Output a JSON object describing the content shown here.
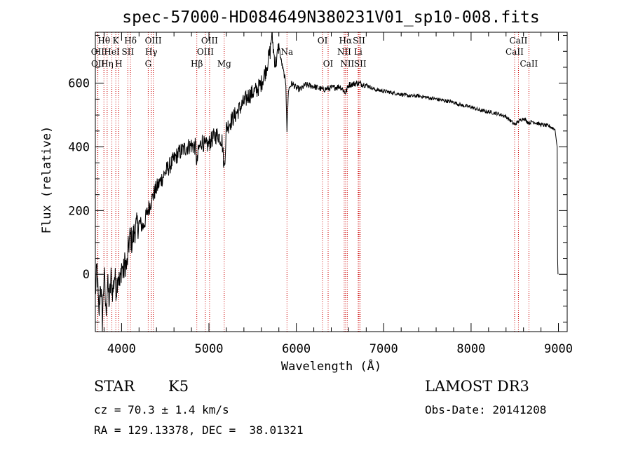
{
  "chart_data": {
    "type": "line",
    "title": "spec-57000-HD084649N380231V01_sp10-008.fits",
    "xlabel": "Wavelength (Å)",
    "ylabel": "Flux (relative)",
    "xlim": [
      3700,
      9100
    ],
    "ylim": [
      -180,
      760
    ],
    "xticks": [
      4000,
      5000,
      6000,
      7000,
      8000,
      9000
    ],
    "yticks": [
      0,
      200,
      400,
      600
    ],
    "series": [
      {
        "name": "spectrum",
        "x": [
          3700,
          3720,
          3740,
          3760,
          3780,
          3800,
          3820,
          3840,
          3860,
          3880,
          3900,
          3920,
          3940,
          3960,
          3980,
          4000,
          4020,
          4040,
          4060,
          4080,
          4100,
          4120,
          4150,
          4200,
          4250,
          4300,
          4340,
          4380,
          4420,
          4460,
          4500,
          4550,
          4600,
          4650,
          4700,
          4750,
          4800,
          4850,
          4861,
          4880,
          4920,
          4960,
          5000,
          5050,
          5100,
          5150,
          5175,
          5200,
          5250,
          5300,
          5350,
          5400,
          5450,
          5500,
          5550,
          5600,
          5650,
          5700,
          5720,
          5740,
          5760,
          5780,
          5800,
          5820,
          5850,
          5880,
          5893,
          5910,
          5950,
          6000,
          6050,
          6100,
          6200,
          6300,
          6400,
          6500,
          6563,
          6600,
          6700,
          6800,
          6900,
          7000,
          7100,
          7200,
          7300,
          7400,
          7500,
          7600,
          7700,
          7800,
          7900,
          8000,
          8100,
          8200,
          8300,
          8400,
          8498,
          8542,
          8600,
          8662,
          8700,
          8800,
          8900,
          8960,
          8985,
          8990,
          8995
        ],
        "values": [
          -60,
          20,
          -140,
          -20,
          -150,
          10,
          -120,
          -30,
          -90,
          -10,
          -60,
          0,
          -50,
          10,
          -40,
          30,
          0,
          40,
          20,
          90,
          120,
          100,
          140,
          160,
          150,
          200,
          230,
          260,
          280,
          300,
          320,
          340,
          360,
          380,
          390,
          400,
          405,
          400,
          340,
          390,
          420,
          400,
          410,
          430,
          440,
          420,
          330,
          460,
          480,
          500,
          520,
          540,
          560,
          570,
          580,
          600,
          640,
          700,
          760,
          700,
          660,
          680,
          720,
          680,
          640,
          600,
          450,
          580,
          600,
          585,
          580,
          595,
          590,
          580,
          585,
          590,
          570,
          595,
          600,
          595,
          580,
          575,
          570,
          565,
          560,
          560,
          555,
          550,
          545,
          540,
          530,
          525,
          515,
          510,
          505,
          495,
          470,
          480,
          490,
          475,
          480,
          470,
          465,
          455,
          400,
          50,
          0
        ]
      }
    ],
    "spectral_lines": [
      {
        "label": "Hθ",
        "wavelength": 3798,
        "row": 1
      },
      {
        "label": "OII",
        "wavelength": 3727,
        "row": 2
      },
      {
        "label": "OII",
        "wavelength": 3729,
        "row": 3
      },
      {
        "label": "HeI",
        "wavelength": 3889,
        "row": 2
      },
      {
        "label": "Hη",
        "wavelength": 3835,
        "row": 3
      },
      {
        "label": "K",
        "wavelength": 3934,
        "row": 1
      },
      {
        "label": "SII",
        "wavelength": 4072,
        "row": 2
      },
      {
        "label": "H",
        "wavelength": 3968,
        "row": 3
      },
      {
        "label": "Hδ",
        "wavelength": 4102,
        "row": 1
      },
      {
        "label": "OIII",
        "wavelength": 4363,
        "row": 1
      },
      {
        "label": "Hγ",
        "wavelength": 4340,
        "row": 2
      },
      {
        "label": "G",
        "wavelength": 4305,
        "row": 3
      },
      {
        "label": "OIII",
        "wavelength": 5007,
        "row": 1
      },
      {
        "label": "OIII",
        "wavelength": 4959,
        "row": 2
      },
      {
        "label": "Hβ",
        "wavelength": 4861,
        "row": 3
      },
      {
        "label": "Mg",
        "wavelength": 5175,
        "row": 3
      },
      {
        "label": "Na",
        "wavelength": 5893,
        "row": 2
      },
      {
        "label": "OI",
        "wavelength": 6300,
        "row": 1
      },
      {
        "label": "OI",
        "wavelength": 6364,
        "row": 3
      },
      {
        "label": "Hα",
        "wavelength": 6563,
        "row": 1
      },
      {
        "label": "NII",
        "wavelength": 6548,
        "row": 2
      },
      {
        "label": "NII",
        "wavelength": 6583,
        "row": 3
      },
      {
        "label": "SII",
        "wavelength": 6717,
        "row": 1
      },
      {
        "label": "Li",
        "wavelength": 6708,
        "row": 2
      },
      {
        "label": "SII",
        "wavelength": 6731,
        "row": 3
      },
      {
        "label": "CaII",
        "wavelength": 8542,
        "row": 1
      },
      {
        "label": "CaII",
        "wavelength": 8498,
        "row": 2
      },
      {
        "label": "CaII",
        "wavelength": 8662,
        "row": 3
      }
    ],
    "line_color": "#000000",
    "marker_color": "#cc0000"
  },
  "info": {
    "class": "STAR",
    "subclass": "K5",
    "survey": "LAMOST DR3",
    "cz": "cz = 70.3 ± 1.4 km/s",
    "obs_date": "Obs-Date: 20141208",
    "coords": "RA = 129.13378, DEC =  38.01321"
  }
}
